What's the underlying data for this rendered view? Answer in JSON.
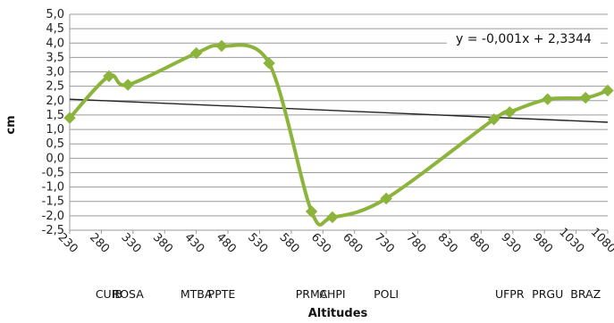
{
  "chart_data": {
    "type": "line",
    "xlabel": "Altitudes",
    "ylabel": "cm",
    "ylim": [
      -2.5,
      5.0
    ],
    "xlim": [
      230,
      1080
    ],
    "grid": "horizontal-major",
    "y_ticks": [
      "5,0",
      "4,5",
      "4,0",
      "3,5",
      "3,0",
      "2,5",
      "2,0",
      "1,5",
      "1,0",
      "0,5",
      "0,0",
      "-0,5",
      "-1,0",
      "-1,5",
      "-2,0",
      "-2,5"
    ],
    "x_ticks": [
      "230",
      "280",
      "330",
      "380",
      "430",
      "480",
      "530",
      "580",
      "630",
      "680",
      "730",
      "780",
      "830",
      "880",
      "930",
      "980",
      "1030",
      "1080"
    ],
    "series": [
      {
        "color": "#8cb43c",
        "marker": "diamond",
        "smooth": true,
        "points": [
          {
            "x": 230,
            "y": 1.4,
            "label": ""
          },
          {
            "x": 292,
            "y": 2.85,
            "label": "CUIB"
          },
          {
            "x": 322,
            "y": 2.55,
            "label": "ROSA"
          },
          {
            "x": 430,
            "y": 3.65,
            "label": "MTBA"
          },
          {
            "x": 470,
            "y": 3.9,
            "label": "PPTE"
          },
          {
            "x": 545,
            "y": 3.3,
            "label": ""
          },
          {
            "x": 612,
            "y": -1.85,
            "label": "PRMA"
          },
          {
            "x": 645,
            "y": -2.05,
            "label": "CHPI"
          },
          {
            "x": 730,
            "y": -1.4,
            "label": "POLI"
          },
          {
            "x": 900,
            "y": 1.35,
            "label": ""
          },
          {
            "x": 925,
            "y": 1.6,
            "label": "UFPR"
          },
          {
            "x": 985,
            "y": 2.05,
            "label": "PRGU"
          },
          {
            "x": 1045,
            "y": 2.1,
            "label": "BRAZ"
          },
          {
            "x": 1080,
            "y": 2.35,
            "label": ""
          }
        ]
      }
    ],
    "trendline": {
      "color": "#222222",
      "x_range": [
        230,
        1080
      ],
      "y_range": [
        2.05,
        1.25
      ],
      "equation": "y = -0,001x + 2,3344"
    },
    "station_labels": [
      "CUIB",
      "ROSA",
      "MTBA",
      "PPTE",
      "PRMA",
      "CHPI",
      "POLI",
      "UFPR",
      "PRGU",
      "BRAZ"
    ]
  }
}
